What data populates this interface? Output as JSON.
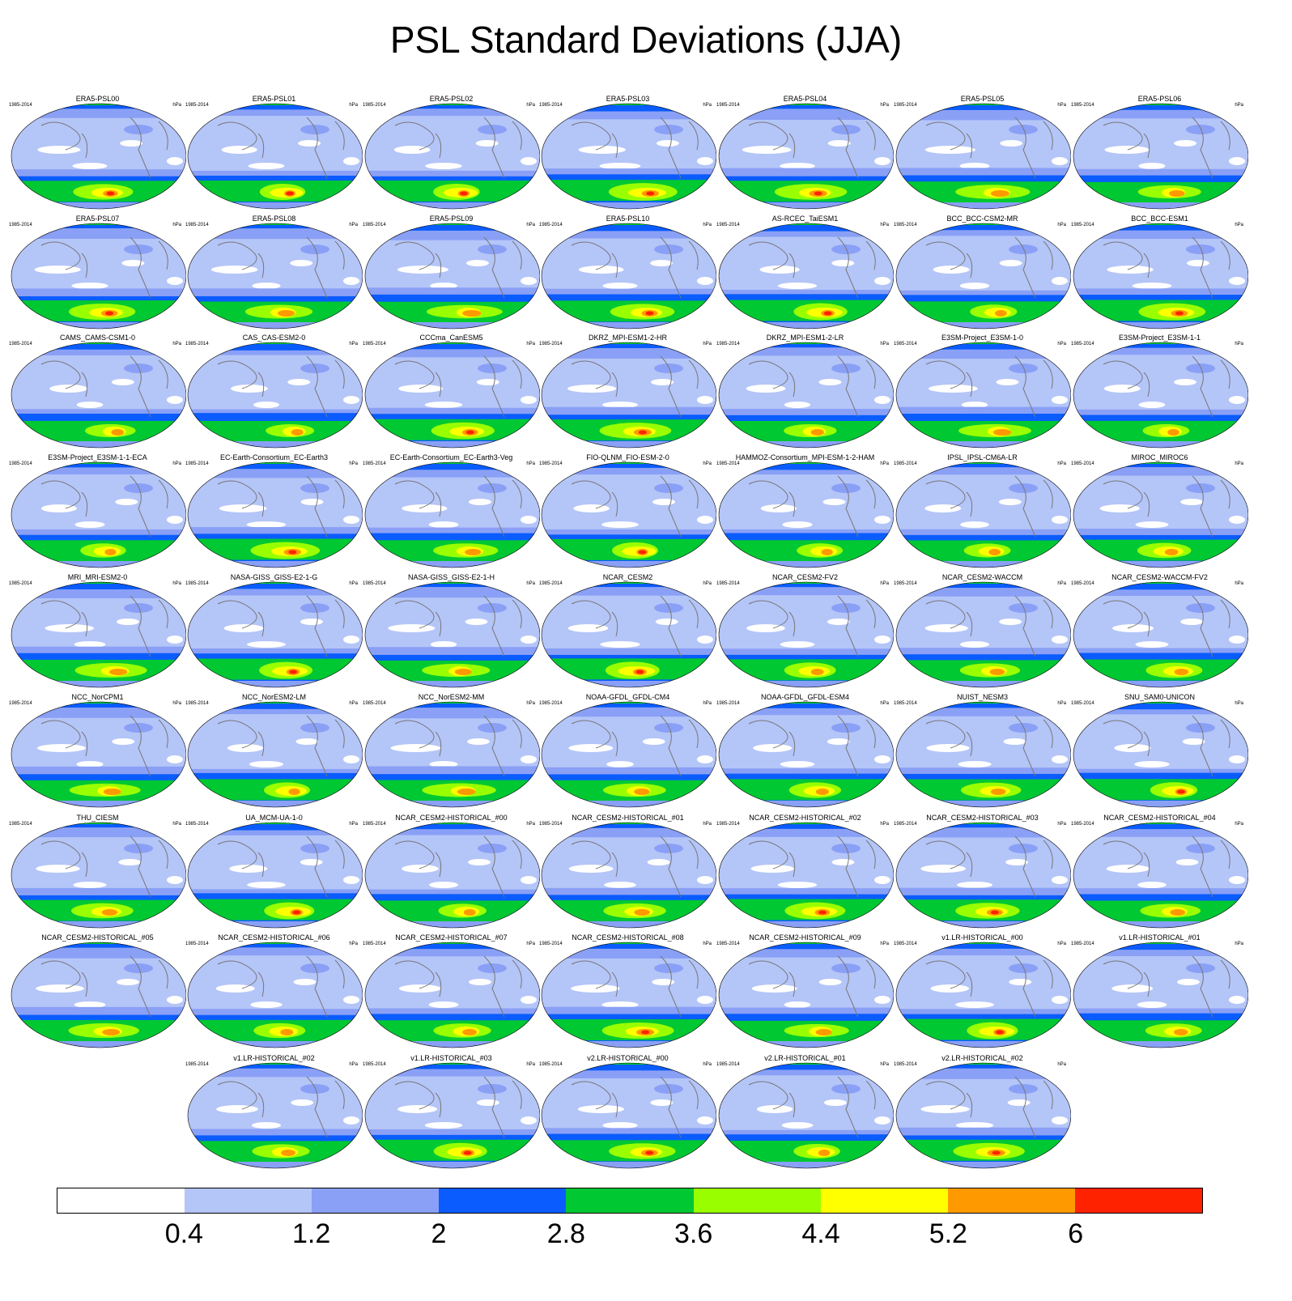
{
  "chart_data": {
    "type": "heatmap",
    "title": "PSL Standard Deviations (JJA)",
    "period_label": "1985-2014",
    "units_label": "hPa",
    "projection": "global map panels",
    "panels": [
      "ERA5-PSL00",
      "ERA5-PSL01",
      "ERA5-PSL02",
      "ERA5-PSL03",
      "ERA5-PSL04",
      "ERA5-PSL05",
      "ERA5-PSL06",
      "ERA5-PSL07",
      "ERA5-PSL08",
      "ERA5-PSL09",
      "ERA5-PSL10",
      "AS-RCEC_TaiESM1",
      "BCC_BCC-CSM2-MR",
      "BCC_BCC-ESM1",
      "CAMS_CAMS-CSM1-0",
      "CAS_CAS-ESM2-0",
      "CCCma_CanESM5",
      "DKRZ_MPI-ESM1-2-HR",
      "DKRZ_MPI-ESM1-2-LR",
      "E3SM-Project_E3SM-1-0",
      "E3SM-Project_E3SM-1-1",
      "E3SM-Project_E3SM-1-1-ECA",
      "EC-Earth-Consortium_EC-Earth3",
      "EC-Earth-Consortium_EC-Earth3-Veg",
      "FIO-QLNM_FIO-ESM-2-0",
      "HAMMOZ-Consortium_MPI-ESM-1-2-HAM",
      "IPSL_IPSL-CM6A-LR",
      "MIROC_MIROC6",
      "MRI_MRI-ESM2-0",
      "NASA-GISS_GISS-E2-1-G",
      "NASA-GISS_GISS-E2-1-H",
      "NCAR_CESM2",
      "NCAR_CESM2-FV2",
      "NCAR_CESM2-WACCM",
      "NCAR_CESM2-WACCM-FV2",
      "NCC_NorCPM1",
      "NCC_NorESM2-LM",
      "NCC_NorESM2-MM",
      "NOAA-GFDL_GFDL-CM4",
      "NOAA-GFDL_GFDL-ESM4",
      "NUIST_NESM3",
      "SNU_SAM0-UNICON",
      "THU_CIESM",
      "UA_MCM-UA-1-0",
      "NCAR_CESM2-HISTORICAL_#00",
      "NCAR_CESM2-HISTORICAL_#01",
      "NCAR_CESM2-HISTORICAL_#02",
      "NCAR_CESM2-HISTORICAL_#03",
      "NCAR_CESM2-HISTORICAL_#04",
      "NCAR_CESM2-HISTORICAL_#05",
      "NCAR_CESM2-HISTORICAL_#06",
      "NCAR_CESM2-HISTORICAL_#07",
      "NCAR_CESM2-HISTORICAL_#08",
      "NCAR_CESM2-HISTORICAL_#09",
      "v1.LR-HISTORICAL_#00",
      "v1.LR-HISTORICAL_#01",
      "v1.LR-HISTORICAL_#02",
      "v1.LR-HISTORICAL_#03",
      "v2.LR-HISTORICAL_#00",
      "v2.LR-HISTORICAL_#01",
      "v2.LR-HISTORICAL_#02"
    ],
    "colorbar": {
      "levels": [
        "0.4",
        "1.2",
        "2",
        "2.8",
        "3.6",
        "4.4",
        "5.2",
        "6"
      ],
      "colors": [
        "#ffffff",
        "#b4c5f8",
        "#8aa0f6",
        "#0a5cff",
        "#00c832",
        "#99ff00",
        "#ffff00",
        "#ff9900",
        "#ff2200"
      ]
    }
  }
}
